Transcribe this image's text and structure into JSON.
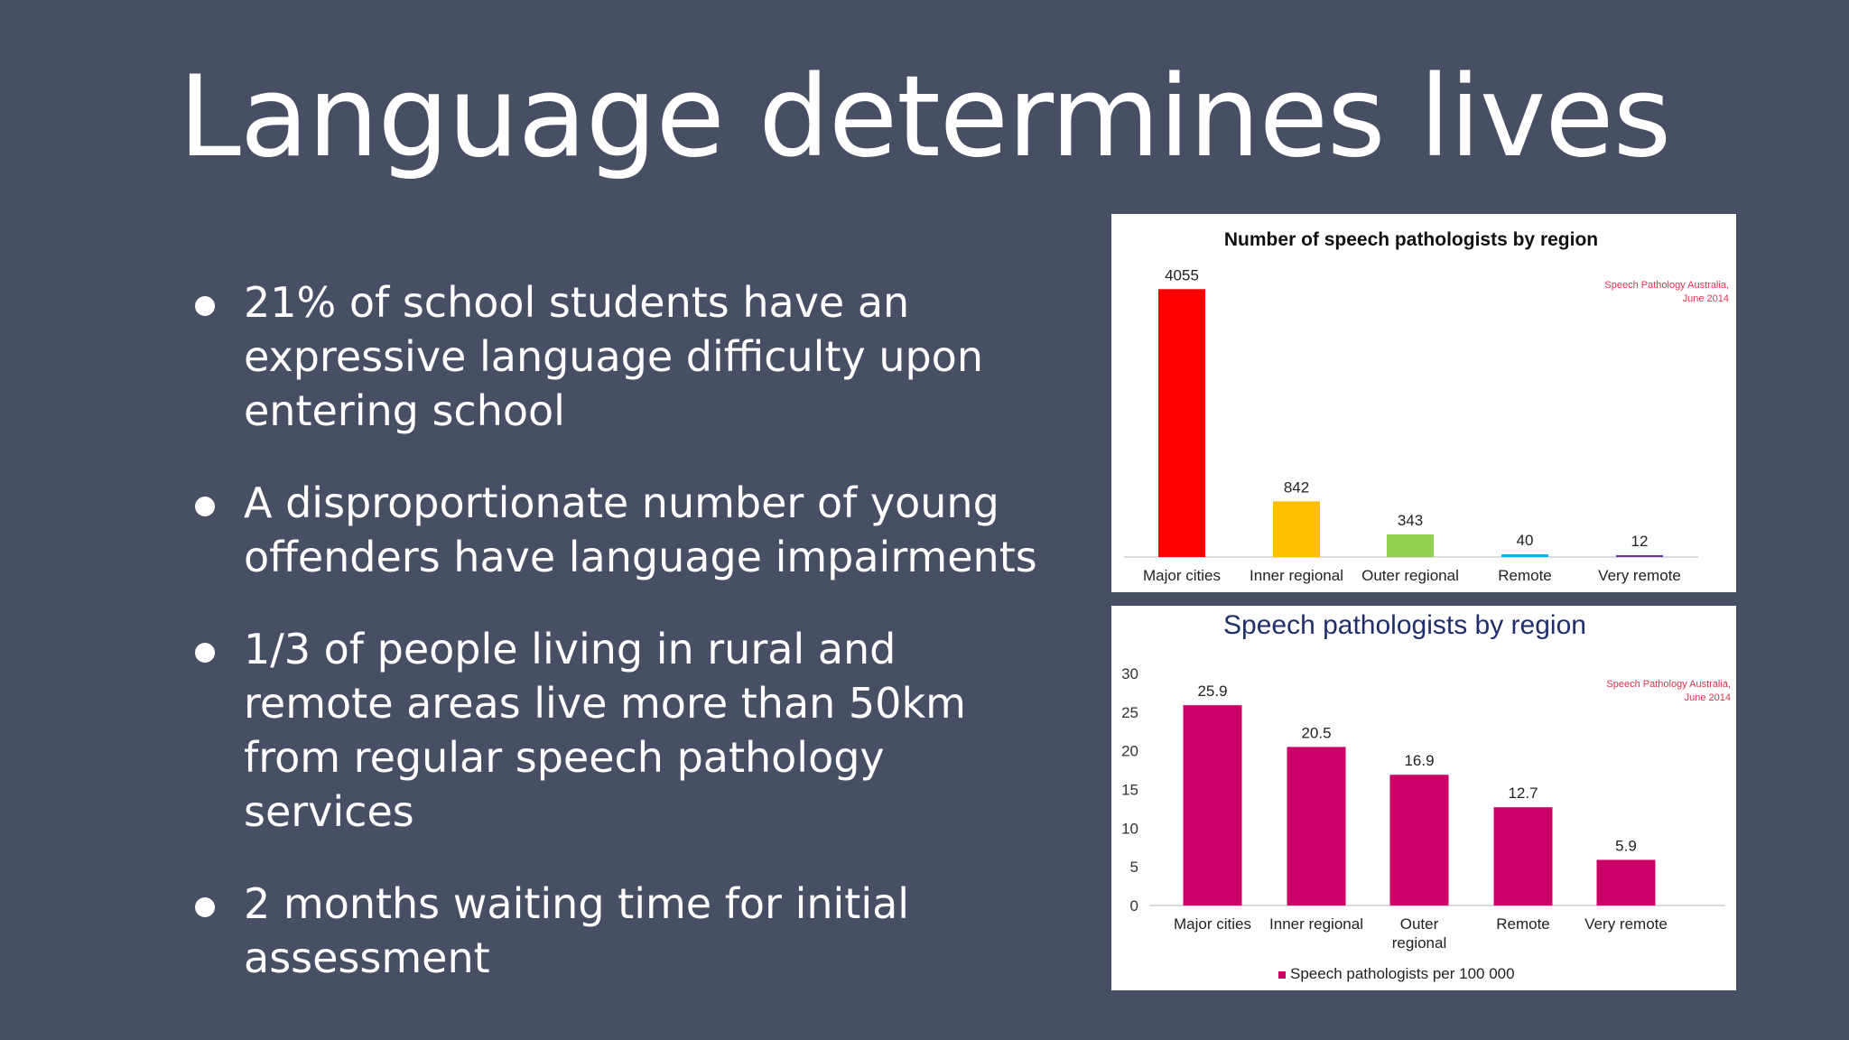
{
  "slide": {
    "title": "Language determines lives",
    "bullets": [
      "21% of school students have an expressive language difficulty upon entering school",
      "A disproportionate number of young offenders have language impairments",
      "1/3 of people living in rural and remote areas live more than 50km from regular speech pathology services",
      "2 months waiting time for initial assessment"
    ]
  },
  "chart_data": [
    {
      "type": "bar",
      "title": "Number of speech pathologists by region",
      "source_note": [
        "Speech Pathology Australia,",
        "June 2014"
      ],
      "categories": [
        "Major cities",
        "Inner regional",
        "Outer regional",
        "Remote",
        "Very remote"
      ],
      "values": [
        4055,
        842,
        343,
        40,
        12
      ],
      "data_labels": [
        "4055",
        "842",
        "343",
        "40",
        "12"
      ],
      "colors": [
        "#ff0000",
        "#ffc000",
        "#92d050",
        "#00b0f0",
        "#7030a0"
      ],
      "ylim": [
        0,
        4100
      ],
      "grid": false,
      "y_axis_visible": false
    },
    {
      "type": "bar",
      "title": "Speech pathologists by region",
      "source_note": [
        "Speech Pathology Australia,",
        "June 2014"
      ],
      "categories": [
        "Major cities",
        "Inner regional",
        "Outer regional",
        "Remote",
        "Very remote"
      ],
      "series": [
        {
          "name": "Speech pathologists per 100 000",
          "values": [
            25.9,
            20.5,
            16.9,
            12.7,
            5.9
          ],
          "color": "#cc0066"
        }
      ],
      "data_labels": [
        "25.9",
        "20.5",
        "16.9",
        "12.7",
        "5.9"
      ],
      "ylim": [
        0,
        30
      ],
      "yticks": [
        "0",
        "5",
        "10",
        "15",
        "20",
        "25",
        "30"
      ],
      "legend": "bottom",
      "grid": false
    }
  ]
}
